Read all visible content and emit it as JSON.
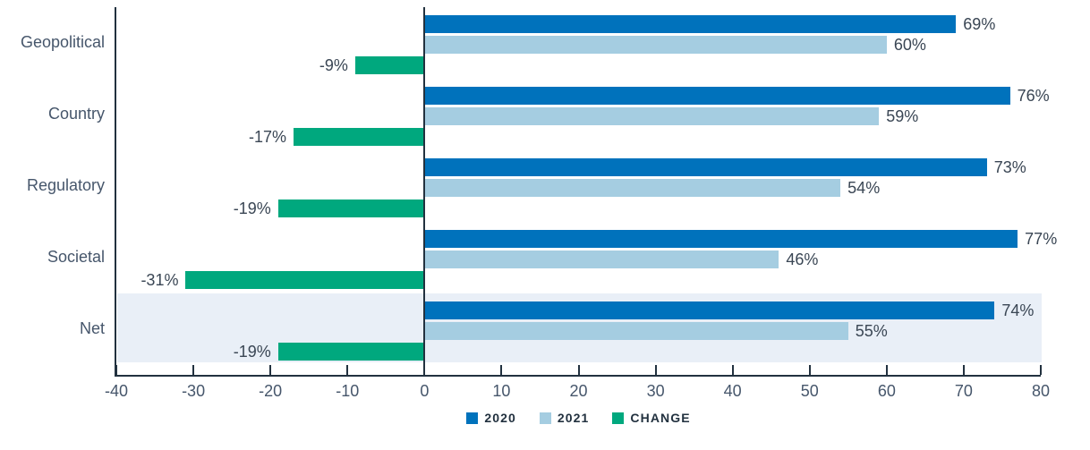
{
  "chart_data": {
    "type": "bar",
    "orientation": "horizontal",
    "categories": [
      "Geopolitical",
      "Country",
      "Regulatory",
      "Societal",
      "Net"
    ],
    "series": [
      {
        "name": "2020",
        "color": "#0072BC",
        "values": [
          69,
          76,
          73,
          77,
          74
        ],
        "data_labels": [
          "69%",
          "76%",
          "73%",
          "77%",
          "74%"
        ]
      },
      {
        "name": "2021",
        "color": "#A5CDE1",
        "values": [
          60,
          59,
          54,
          46,
          55
        ],
        "data_labels": [
          "60%",
          "59%",
          "54%",
          "46%",
          "55%"
        ]
      },
      {
        "name": "CHANGE",
        "color": "#00A87E",
        "values": [
          -9,
          -17,
          -19,
          -31,
          -19
        ],
        "data_labels": [
          "-9%",
          "-17%",
          "-19%",
          "-31%",
          "-19%"
        ]
      }
    ],
    "xlim": [
      -40,
      80
    ],
    "x_ticks": [
      "-40",
      "-30",
      "-20",
      "-10",
      "0",
      "10",
      "20",
      "30",
      "40",
      "50",
      "60",
      "70",
      "80"
    ],
    "grid": false,
    "legend_position": "bottom-center",
    "highlighted_category": "Net",
    "colors": {
      "highlight_band": "#E9EFF7",
      "axis_line": "#22313F",
      "tick_label": "#46566B",
      "category_label": "#46566B",
      "value_label": "#3A4654"
    }
  }
}
